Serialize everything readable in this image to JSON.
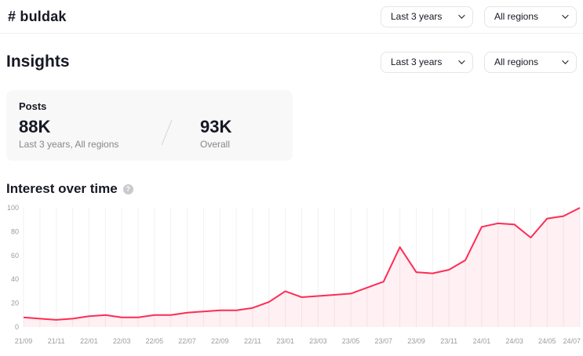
{
  "header": {
    "hashtag": "# buldak",
    "time_filter": "Last 3 years",
    "region_filter": "All regions"
  },
  "insights": {
    "title": "Insights",
    "time_filter": "Last 3 years",
    "region_filter": "All regions",
    "posts_card": {
      "label": "Posts",
      "primary_value": "88K",
      "primary_caption": "Last 3 years, All regions",
      "secondary_value": "93K",
      "secondary_caption": "Overall"
    }
  },
  "chart_section": {
    "title": "Interest over time"
  },
  "chart_data": {
    "type": "area",
    "title": "Interest over time",
    "tick_labels": [
      "21/09",
      "21/11",
      "22/01",
      "22/03",
      "22/05",
      "22/07",
      "22/09",
      "22/11",
      "23/01",
      "23/03",
      "23/05",
      "23/07",
      "23/09",
      "23/11",
      "24/01",
      "24/03",
      "24/05",
      "24/07"
    ],
    "tick_every": 2,
    "values": [
      8,
      7,
      6,
      7,
      9,
      10,
      8,
      8,
      10,
      10,
      12,
      13,
      14,
      14,
      16,
      21,
      30,
      25,
      26,
      27,
      28,
      33,
      38,
      67,
      46,
      45,
      48,
      56,
      84,
      87,
      86,
      75,
      91,
      93,
      100
    ],
    "ylim": [
      0,
      100
    ],
    "yticks": [
      0,
      20,
      40,
      60,
      80,
      100
    ],
    "grid": "vertical",
    "legend": "none",
    "line_color": "#fe2c55",
    "fill_color": "#fe2c55",
    "fill_opacity": 0.07,
    "grid_color": "#f1f1f2",
    "axis_text_color": "#9a9ba3"
  }
}
